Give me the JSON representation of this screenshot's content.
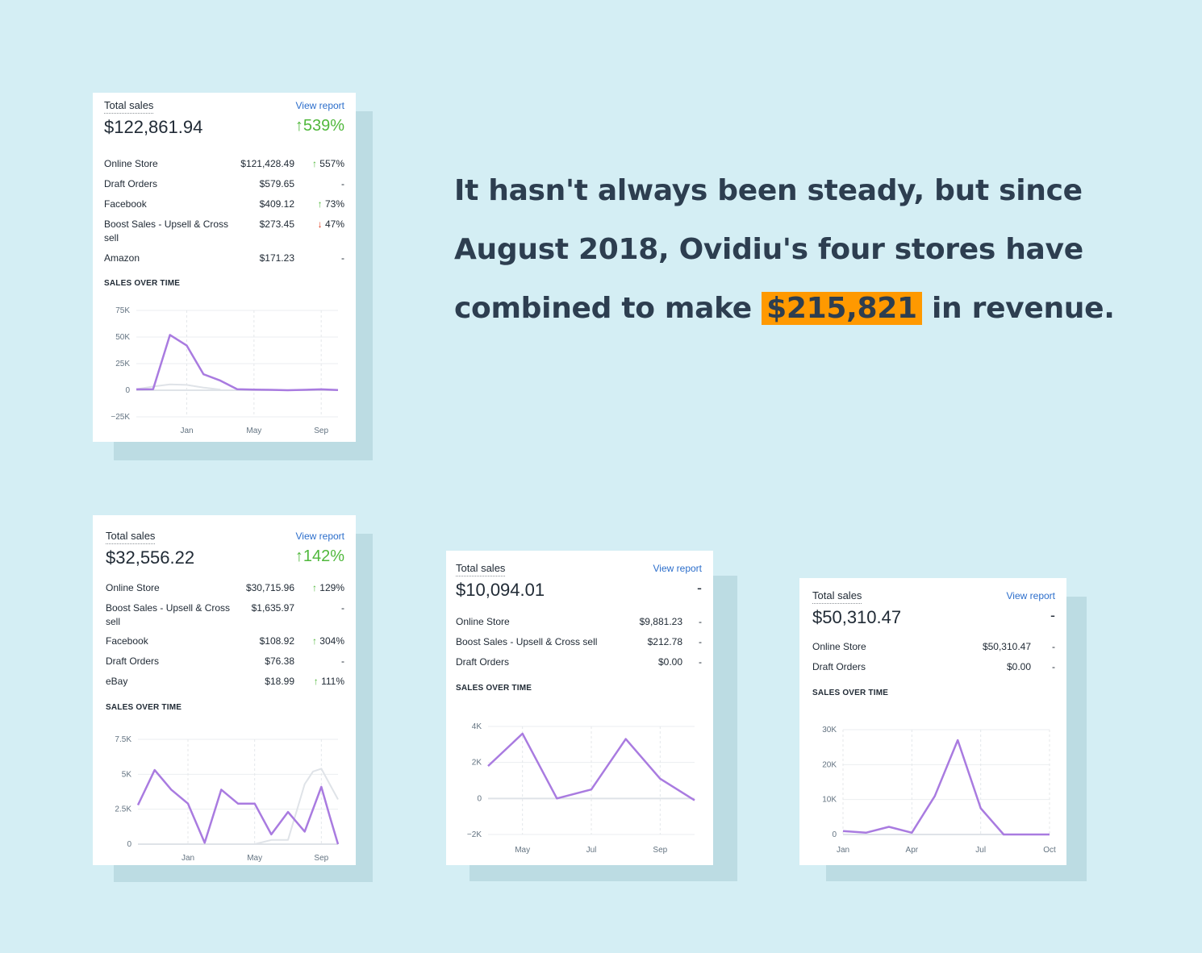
{
  "headline": {
    "part1": "It hasn't always been steady, but since August 2018, Ovidiu's four stores have combined to make ",
    "highlight": "$215,821",
    "part2": " in revenue."
  },
  "colors": {
    "accent_line": "#a97be0",
    "prev_line": "#dfe3e8",
    "highlight": "#ff9900",
    "positive": "#50b83c",
    "negative": "#de3618"
  },
  "cards": [
    {
      "title": "Total sales",
      "view_report": "View report",
      "amount": "$122,861.94",
      "change": "539%",
      "rows": [
        {
          "name": "Online Store",
          "value": "$121,428.49",
          "change": "557%",
          "dir": "up"
        },
        {
          "name": "Draft Orders",
          "value": "$579.65",
          "change": "-",
          "dir": "none"
        },
        {
          "name": "Facebook",
          "value": "$409.12",
          "change": "73%",
          "dir": "up"
        },
        {
          "name": "Boost Sales - Upsell & Cross sell",
          "value": "$273.45",
          "change": "47%",
          "dir": "down"
        },
        {
          "name": "Amazon",
          "value": "$171.23",
          "change": "-",
          "dir": "none"
        }
      ],
      "sales_over_time": "SALES OVER TIME"
    },
    {
      "title": "Total sales",
      "view_report": "View report",
      "amount": "$32,556.22",
      "change": "142%",
      "rows": [
        {
          "name": "Online Store",
          "value": "$30,715.96",
          "change": "129%",
          "dir": "up"
        },
        {
          "name": "Boost Sales - Upsell & Cross sell",
          "value": "$1,635.97",
          "change": "-",
          "dir": "none"
        },
        {
          "name": "Facebook",
          "value": "$108.92",
          "change": "304%",
          "dir": "up"
        },
        {
          "name": "Draft Orders",
          "value": "$76.38",
          "change": "-",
          "dir": "none"
        },
        {
          "name": "eBay",
          "value": "$18.99",
          "change": "111%",
          "dir": "up"
        }
      ],
      "sales_over_time": "SALES OVER TIME"
    },
    {
      "title": "Total sales",
      "view_report": "View report",
      "amount": "$10,094.01",
      "change": "-",
      "rows": [
        {
          "name": "Online Store",
          "value": "$9,881.23",
          "change": "-",
          "dir": "none"
        },
        {
          "name": "Boost Sales - Upsell & Cross sell",
          "value": "$212.78",
          "change": "-",
          "dir": "none"
        },
        {
          "name": "Draft Orders",
          "value": "$0.00",
          "change": "-",
          "dir": "none"
        }
      ],
      "sales_over_time": "SALES OVER TIME"
    },
    {
      "title": "Total sales",
      "view_report": "View report",
      "amount": "$50,310.47",
      "change": "-",
      "rows": [
        {
          "name": "Online Store",
          "value": "$50,310.47",
          "change": "-",
          "dir": "none"
        },
        {
          "name": "Draft Orders",
          "value": "$0.00",
          "change": "-",
          "dir": "none"
        }
      ],
      "sales_over_time": "SALES OVER TIME"
    }
  ],
  "chart_data": [
    {
      "type": "line",
      "title": "SALES OVER TIME",
      "yticks": [
        75000,
        50000,
        25000,
        0,
        -25000
      ],
      "ytick_labels": [
        "75K",
        "50K",
        "25K",
        "0",
        "−25K"
      ],
      "ylim": [
        -25000,
        75000
      ],
      "xlim": [
        0,
        12
      ],
      "xticks": [
        3,
        7,
        11
      ],
      "xtick_labels": [
        "Jan",
        "May",
        "Sep"
      ],
      "series": [
        {
          "name": "current",
          "x": [
            0,
            1,
            2,
            3,
            4,
            5,
            6,
            7,
            8,
            9,
            10,
            11,
            12
          ],
          "values": [
            800,
            1000,
            52000,
            42000,
            15000,
            9000,
            1000,
            600,
            400,
            0,
            400,
            800,
            200
          ]
        },
        {
          "name": "previous",
          "x": [
            0,
            1,
            2,
            3,
            4,
            5
          ],
          "values": [
            1000,
            3500,
            5500,
            5000,
            2500,
            500
          ]
        }
      ]
    },
    {
      "type": "line",
      "title": "SALES OVER TIME",
      "yticks": [
        7500,
        5000,
        2500,
        0
      ],
      "ytick_labels": [
        "7.5K",
        "5K",
        "2.5K",
        "0"
      ],
      "ylim": [
        0,
        7500
      ],
      "xlim": [
        0,
        12
      ],
      "xticks": [
        3,
        7,
        11
      ],
      "xtick_labels": [
        "Jan",
        "May",
        "Sep"
      ],
      "series": [
        {
          "name": "current",
          "x": [
            0,
            1,
            2,
            3,
            4,
            5,
            6,
            7,
            8,
            9,
            10,
            11,
            11.5,
            12
          ],
          "values": [
            2800,
            5300,
            3900,
            2900,
            100,
            3900,
            2900,
            2900,
            700,
            2300,
            900,
            4100,
            2000,
            0
          ]
        },
        {
          "name": "previous",
          "x": [
            6,
            7,
            8,
            9,
            10,
            10.5,
            11,
            12
          ],
          "values": [
            0,
            0,
            300,
            300,
            4300,
            5200,
            5400,
            3200
          ]
        }
      ]
    },
    {
      "type": "line",
      "title": "SALES OVER TIME",
      "yticks": [
        4000,
        2000,
        0,
        -2000
      ],
      "ytick_labels": [
        "4K",
        "2K",
        "0",
        "−2K"
      ],
      "ylim": [
        -2000,
        4000
      ],
      "xlim": [
        0,
        6
      ],
      "xticks": [
        1,
        3,
        5
      ],
      "xtick_labels": [
        "May",
        "Jul",
        "Sep"
      ],
      "series": [
        {
          "name": "current",
          "x": [
            0,
            1,
            2,
            3,
            4,
            5,
            6
          ],
          "values": [
            1800,
            3600,
            0,
            500,
            3300,
            1100,
            -100
          ]
        }
      ]
    },
    {
      "type": "line",
      "title": "SALES OVER TIME",
      "yticks": [
        30000,
        20000,
        10000,
        0
      ],
      "ytick_labels": [
        "30K",
        "20K",
        "10K",
        "0"
      ],
      "ylim": [
        0,
        30000
      ],
      "xlim": [
        0,
        9
      ],
      "xticks": [
        0,
        3,
        6,
        9
      ],
      "xtick_labels": [
        "Jan",
        "Apr",
        "Jul",
        "Oct"
      ],
      "series": [
        {
          "name": "current",
          "x": [
            0,
            1,
            2,
            3,
            4,
            5,
            6,
            7,
            8,
            9
          ],
          "values": [
            1000,
            500,
            2200,
            500,
            11000,
            27000,
            7500,
            0,
            0,
            0
          ]
        }
      ]
    }
  ]
}
